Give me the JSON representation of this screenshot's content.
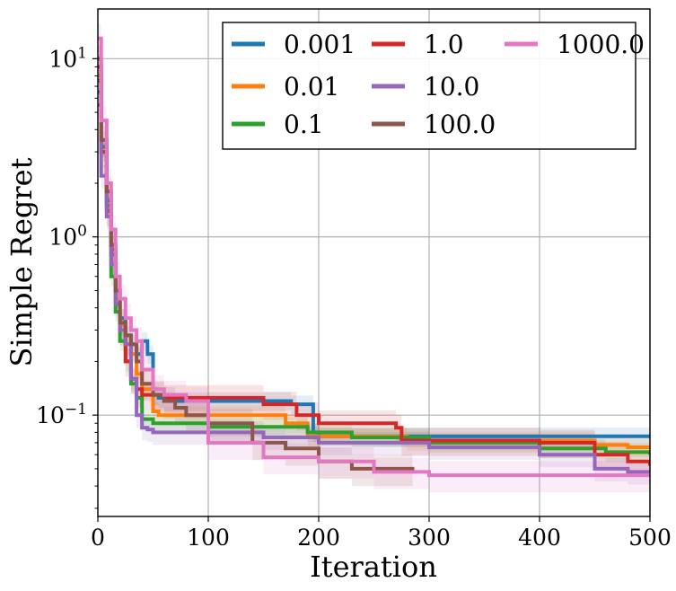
{
  "chart_data": {
    "type": "line",
    "title": "",
    "xlabel": "Iteration",
    "ylabel": "Simple Regret",
    "xlim": [
      0,
      500
    ],
    "ylim": [
      0.027,
      19
    ],
    "yscale": "log",
    "grid": true,
    "legend_position": "top-right",
    "legend_columns": 3,
    "x_ticks": [
      {
        "value": 0,
        "label": "0"
      },
      {
        "value": 100,
        "label": "100"
      },
      {
        "value": 200,
        "label": "200"
      },
      {
        "value": 300,
        "label": "300"
      },
      {
        "value": 400,
        "label": "400"
      },
      {
        "value": 500,
        "label": "500"
      }
    ],
    "y_ticks": [
      {
        "value": 0.1,
        "base": "10",
        "exp": "−1"
      },
      {
        "value": 1,
        "base": "10",
        "exp": "0"
      },
      {
        "value": 10,
        "base": "10",
        "exp": "1"
      }
    ],
    "series": [
      {
        "name": "0.001",
        "color": "#1f77b4",
        "band": 0.12,
        "x": [
          0,
          3,
          8,
          12,
          16,
          20,
          25,
          30,
          35,
          40,
          45,
          50,
          55,
          60,
          80,
          120,
          160,
          175,
          195,
          200,
          280,
          500
        ],
        "y": [
          6.5,
          3.2,
          1.6,
          0.8,
          0.5,
          0.35,
          0.28,
          0.25,
          0.22,
          0.26,
          0.22,
          0.13,
          0.125,
          0.12,
          0.12,
          0.12,
          0.12,
          0.115,
          0.08,
          0.076,
          0.076,
          0.076
        ]
      },
      {
        "name": "0.01",
        "color": "#ff7f0e",
        "band": 0.12,
        "x": [
          0,
          3,
          8,
          12,
          16,
          20,
          25,
          30,
          35,
          40,
          50,
          55,
          60,
          70,
          100,
          140,
          170,
          190,
          200,
          280,
          450,
          480,
          500
        ],
        "y": [
          8.0,
          3.5,
          1.8,
          0.7,
          0.45,
          0.32,
          0.25,
          0.22,
          0.17,
          0.14,
          0.105,
          0.1,
          0.1,
          0.1,
          0.1,
          0.1,
          0.09,
          0.076,
          0.076,
          0.072,
          0.068,
          0.066,
          0.066
        ]
      },
      {
        "name": "0.1",
        "color": "#2ca02c",
        "band": 0.12,
        "x": [
          0,
          3,
          8,
          12,
          16,
          20,
          25,
          30,
          35,
          40,
          50,
          60,
          100,
          190,
          230,
          300,
          400,
          460,
          500
        ],
        "y": [
          7.5,
          3.0,
          1.5,
          0.6,
          0.38,
          0.26,
          0.2,
          0.15,
          0.125,
          0.095,
          0.09,
          0.09,
          0.086,
          0.08,
          0.075,
          0.07,
          0.065,
          0.062,
          0.06
        ]
      },
      {
        "name": "1.0",
        "color": "#d62728",
        "band": 0.18,
        "x": [
          0,
          3,
          8,
          12,
          16,
          20,
          25,
          30,
          35,
          40,
          50,
          60,
          100,
          150,
          180,
          200,
          270,
          275,
          300,
          400,
          450,
          480,
          500
        ],
        "y": [
          9.0,
          3.0,
          1.4,
          0.85,
          0.5,
          0.3,
          0.2,
          0.16,
          0.14,
          0.13,
          0.13,
          0.125,
          0.125,
          0.115,
          0.1,
          0.09,
          0.085,
          0.072,
          0.072,
          0.07,
          0.06,
          0.055,
          0.052
        ]
      },
      {
        "name": "10.0",
        "color": "#9467bd",
        "band": 0.15,
        "x": [
          0,
          3,
          8,
          12,
          16,
          20,
          25,
          30,
          35,
          40,
          45,
          50,
          100,
          150,
          200,
          300,
          400,
          450,
          480,
          500
        ],
        "y": [
          5.5,
          2.2,
          1.3,
          0.7,
          0.42,
          0.3,
          0.25,
          0.16,
          0.1,
          0.085,
          0.083,
          0.08,
          0.08,
          0.075,
          0.07,
          0.066,
          0.06,
          0.05,
          0.048,
          0.048
        ]
      },
      {
        "name": "100.0",
        "color": "#8c564b",
        "band": 0.2,
        "x": [
          0,
          3,
          8,
          12,
          16,
          20,
          25,
          30,
          35,
          40,
          50,
          60,
          70,
          80,
          100,
          140,
          170,
          200,
          230,
          285
        ],
        "y": [
          10.0,
          3.5,
          1.8,
          0.9,
          0.5,
          0.33,
          0.28,
          0.25,
          0.2,
          0.15,
          0.13,
          0.12,
          0.11,
          0.1,
          0.09,
          0.07,
          0.065,
          0.055,
          0.05,
          0.048
        ]
      },
      {
        "name": "1000.0",
        "color": "#e377c2",
        "band": 0.2,
        "x": [
          0,
          3,
          8,
          12,
          16,
          20,
          25,
          30,
          35,
          40,
          50,
          60,
          80,
          100,
          150,
          200,
          250,
          300,
          400,
          500
        ],
        "y": [
          13.0,
          4.5,
          2.0,
          1.1,
          0.6,
          0.45,
          0.35,
          0.3,
          0.26,
          0.18,
          0.14,
          0.13,
          0.12,
          0.07,
          0.058,
          0.055,
          0.048,
          0.046,
          0.046,
          0.046
        ]
      }
    ]
  }
}
